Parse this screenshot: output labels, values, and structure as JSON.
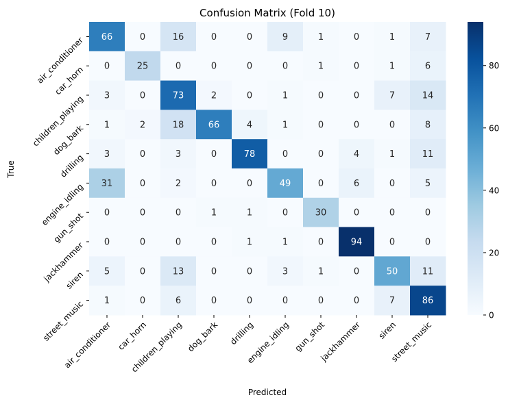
{
  "chart_data": {
    "type": "heatmap",
    "title": "Confusion Matrix (Fold 10)",
    "xlabel": "Predicted",
    "ylabel": "True",
    "x_categories": [
      "air_conditioner",
      "car_horn",
      "children_playing",
      "dog_bark",
      "drilling",
      "engine_idling",
      "gun_shot",
      "jackhammer",
      "siren",
      "street_music"
    ],
    "y_categories": [
      "air_conditioner",
      "car_horn",
      "children_playing",
      "dog_bark",
      "drilling",
      "engine_idling",
      "gun_shot",
      "jackhammer",
      "siren",
      "street_music"
    ],
    "values": [
      [
        66,
        0,
        16,
        0,
        0,
        9,
        1,
        0,
        1,
        7
      ],
      [
        0,
        25,
        0,
        0,
        0,
        0,
        1,
        0,
        1,
        6
      ],
      [
        3,
        0,
        73,
        2,
        0,
        1,
        0,
        0,
        7,
        14
      ],
      [
        1,
        2,
        18,
        66,
        4,
        1,
        0,
        0,
        0,
        8
      ],
      [
        3,
        0,
        3,
        0,
        78,
        0,
        0,
        4,
        1,
        11
      ],
      [
        31,
        0,
        2,
        0,
        0,
        49,
        0,
        6,
        0,
        5
      ],
      [
        0,
        0,
        0,
        1,
        1,
        0,
        30,
        0,
        0,
        0
      ],
      [
        0,
        0,
        0,
        0,
        1,
        1,
        0,
        94,
        0,
        0
      ],
      [
        5,
        0,
        13,
        0,
        0,
        3,
        1,
        0,
        50,
        11
      ],
      [
        1,
        0,
        6,
        0,
        0,
        0,
        0,
        0,
        7,
        86
      ]
    ],
    "colorbar": {
      "range": [
        0,
        94
      ],
      "ticks": [
        0,
        20,
        40,
        60,
        80
      ]
    },
    "colormap": "Blues"
  }
}
